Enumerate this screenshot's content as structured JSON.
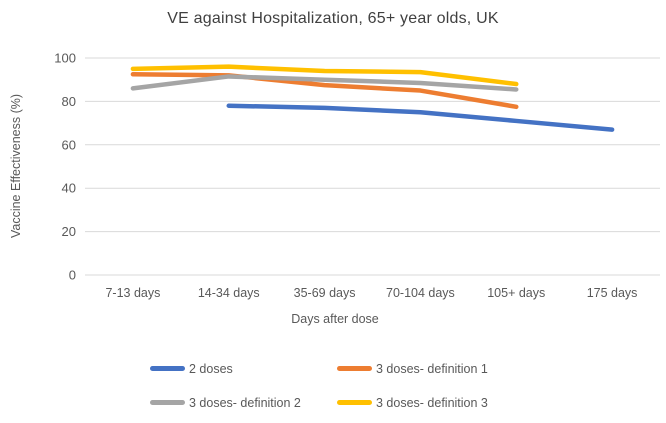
{
  "title": "VE against Hospitalization, 65+ year olds, UK",
  "chart_data": {
    "type": "line",
    "title": "VE against Hospitalization, 65+ year olds, UK",
    "categories": [
      "7-13 days",
      "14-34 days",
      "35-69 days",
      "70-104 days",
      "105+ days",
      "175 days"
    ],
    "xlabel": "Days after dose",
    "ylabel": "Vaccine Effectiveness (%)",
    "ylim": [
      0,
      100
    ],
    "ytick_interval": 20,
    "ytick_labels": [
      "0",
      "20",
      "40",
      "60",
      "80",
      "100"
    ],
    "grid": true,
    "legend_position": "bottom",
    "series": [
      {
        "name": "2 doses",
        "color": "#4472C4",
        "values": [
          null,
          78,
          77,
          75,
          71,
          67
        ]
      },
      {
        "name": "3 doses- definition 1",
        "color": "#ED7D31",
        "values": [
          92.5,
          92,
          87.5,
          85,
          77.5,
          null
        ]
      },
      {
        "name": "3 doses- definition 2",
        "color": "#A5A5A5",
        "values": [
          86,
          91.5,
          90,
          88.5,
          85.5,
          null
        ]
      },
      {
        "name": "3 doses- definition 3",
        "color": "#FFC000",
        "values": [
          95,
          96,
          94,
          93.5,
          88,
          null
        ]
      }
    ]
  },
  "colors": {
    "background": "#FFFFFF",
    "gridline": "#D9D9D9",
    "title_text": "#404040",
    "axis_text": "#595959"
  }
}
